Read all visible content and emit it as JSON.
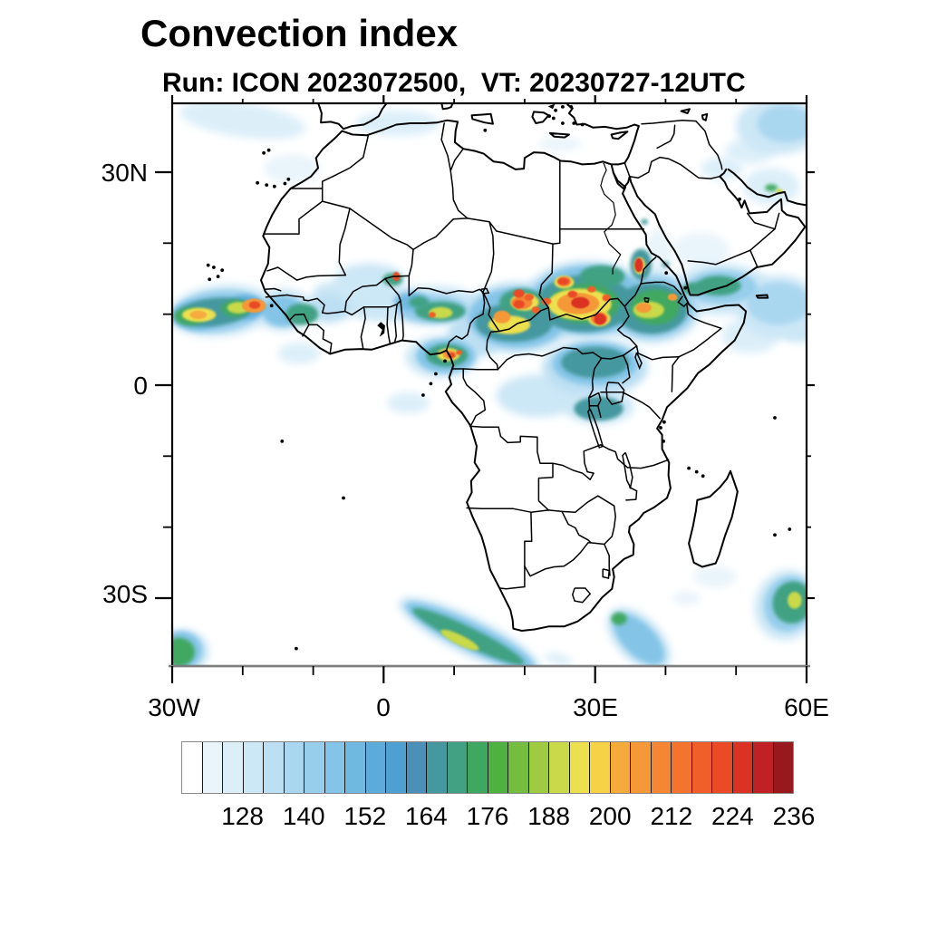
{
  "title": "Convection index",
  "subtitle": "Run: ICON 2023072500,  VT: 20230727-12UTC",
  "map": {
    "x_axis": {
      "major": [
        {
          "label": "30W",
          "lon": -30
        },
        {
          "label": "0",
          "lon": 0
        },
        {
          "label": "30E",
          "lon": 30
        },
        {
          "label": "60E",
          "lon": 60
        }
      ],
      "minor_lons": [
        -20,
        -10,
        10,
        20,
        40,
        50
      ]
    },
    "y_axis": {
      "major": [
        {
          "label": "30N",
          "lat": 30
        },
        {
          "label": "0",
          "lat": 0
        },
        {
          "label": "30S",
          "lat": -30
        }
      ],
      "minor_lats": [
        20,
        10,
        -10,
        -20
      ]
    }
  },
  "colorbar": {
    "min_value": 116,
    "step": 4,
    "tick_labels": [
      "128",
      "140",
      "152",
      "164",
      "176",
      "188",
      "200",
      "212",
      "224",
      "236"
    ],
    "colors": [
      "#FFFFFF",
      "#E9F4FB",
      "#DCEFF9",
      "#CCE7F6",
      "#BCDFF3",
      "#AAD7F0",
      "#97CEEC",
      "#83C4E7",
      "#6FB9E1",
      "#5BACDB",
      "#4E9FD2",
      "#4A90B8",
      "#45989F",
      "#41A183",
      "#3FA860",
      "#4FB13F",
      "#75BD3E",
      "#9FCB43",
      "#C9D94A",
      "#EDE04E",
      "#F6D346",
      "#F5AB3C",
      "#F49838",
      "#F48634",
      "#F3732F",
      "#F05E29",
      "#EA4A25",
      "#DC3224",
      "#C02125",
      "#97181D"
    ]
  },
  "chart_data": {
    "type": "heatmap",
    "title": "Convection index",
    "model_run": "ICON 2023072500",
    "valid_time": "20230727-12UTC",
    "projection": "equirectangular",
    "lon_range": [
      -30,
      60
    ],
    "lat_range": [
      -39.6,
      39.7
    ],
    "levels_start": 116,
    "levels_step": 4,
    "legend_position": "bottom",
    "convection_cells": [
      [
        -23,
        10.5,
        7.5,
        3.6,
        -6,
        128
      ],
      [
        -14.2,
        10.6,
        4.2,
        3,
        0,
        128
      ],
      [
        -8,
        10.8,
        3.5,
        2,
        0,
        132
      ],
      [
        0,
        11.5,
        6,
        2.5,
        0,
        128
      ],
      [
        -2,
        14.8,
        5,
        2.4,
        0,
        128
      ],
      [
        -7,
        13,
        3,
        1.6,
        0,
        128
      ],
      [
        7,
        11.2,
        7,
        2.8,
        0,
        128
      ],
      [
        8.3,
        4,
        5.2,
        3,
        0,
        128
      ],
      [
        13,
        7,
        4,
        3,
        0,
        132
      ],
      [
        19,
        9.5,
        8,
        5,
        0,
        132
      ],
      [
        29,
        12,
        9,
        5.5,
        0,
        132
      ],
      [
        38,
        11,
        7,
        5,
        0,
        132
      ],
      [
        30,
        2.5,
        7.5,
        4,
        0,
        132
      ],
      [
        22,
        -1.5,
        6,
        3,
        0,
        128
      ],
      [
        30.5,
        -3,
        5,
        2.5,
        0,
        128
      ],
      [
        3.5,
        -2.5,
        3,
        1.5,
        0,
        124
      ],
      [
        -12,
        4.5,
        3,
        1.5,
        0,
        124
      ],
      [
        48,
        13.5,
        7,
        3.6,
        0,
        128
      ],
      [
        56,
        11,
        6,
        4.5,
        0,
        128
      ],
      [
        52,
        7,
        4,
        2.5,
        0,
        124
      ],
      [
        59,
        8,
        3,
        2,
        0,
        128
      ],
      [
        45,
        19,
        4,
        2.5,
        0,
        120
      ],
      [
        48,
        30.5,
        3,
        1.6,
        0,
        124
      ],
      [
        52,
        33,
        3.5,
        1.8,
        0,
        124
      ],
      [
        -20,
        37.3,
        9,
        2.4,
        8,
        124
      ],
      [
        2,
        36.9,
        6,
        1.8,
        0,
        124
      ],
      [
        25,
        34,
        3,
        1,
        0,
        120
      ],
      [
        56,
        36.5,
        6,
        4,
        0,
        128
      ],
      [
        55,
        28,
        4,
        2.6,
        0,
        124
      ],
      [
        12.2,
        -35.3,
        11,
        2.6,
        26,
        132
      ],
      [
        36.2,
        -35.8,
        5.5,
        3,
        45,
        132
      ],
      [
        57.2,
        -31,
        4.5,
        5,
        20,
        128
      ],
      [
        -28.5,
        -37.5,
        3.6,
        3,
        0,
        132
      ],
      [
        24.8,
        -38.6,
        2,
        0.8,
        15,
        124
      ],
      [
        -13,
        30.5,
        4,
        2,
        0,
        120
      ],
      [
        39,
        18.5,
        2,
        3.5,
        0,
        120
      ],
      [
        47,
        -27,
        3,
        1.5,
        0,
        120
      ],
      [
        43,
        -30,
        2,
        1,
        0,
        120
      ],
      [
        -23.5,
        10.4,
        6.5,
        2.9,
        -6,
        140
      ],
      [
        -26.5,
        9.8,
        3.5,
        2,
        0,
        148
      ],
      [
        -19.5,
        11,
        2.6,
        1.7,
        0,
        152
      ],
      [
        -14.3,
        10.4,
        3,
        2.2,
        0,
        144
      ],
      [
        7,
        10.7,
        5,
        2,
        0,
        140
      ],
      [
        4,
        11.8,
        2.5,
        1.3,
        0,
        148
      ],
      [
        8.8,
        4.1,
        4.2,
        2.4,
        0,
        144
      ],
      [
        19,
        9.5,
        7,
        4.2,
        0,
        144
      ],
      [
        29,
        12,
        8,
        4.8,
        0,
        144
      ],
      [
        38,
        11,
        6,
        4.3,
        0,
        140
      ],
      [
        30,
        3,
        6,
        3,
        0,
        144
      ],
      [
        48,
        13.8,
        5,
        2.4,
        0,
        140
      ],
      [
        56,
        11.5,
        4.5,
        3,
        0,
        136
      ],
      [
        57,
        36.8,
        4,
        2.6,
        0,
        136
      ],
      [
        12.2,
        -35.3,
        10,
        1.9,
        26,
        144
      ],
      [
        36.2,
        -35.8,
        4.5,
        2.2,
        45,
        144
      ],
      [
        57.5,
        -30.8,
        3.5,
        4,
        20,
        140
      ],
      [
        -28.8,
        -37.3,
        3,
        2.6,
        0,
        144
      ],
      [
        -24,
        10.3,
        5.2,
        2,
        -6,
        164
      ],
      [
        -27.5,
        9.7,
        2.2,
        1.3,
        0,
        172
      ],
      [
        -21,
        10.8,
        2,
        1.2,
        0,
        172
      ],
      [
        -11.6,
        10,
        2.3,
        1.5,
        0,
        168
      ],
      [
        1.3,
        14.9,
        1.4,
        0.9,
        0,
        168
      ],
      [
        8,
        10.4,
        3.6,
        1.4,
        0,
        168
      ],
      [
        5,
        11.7,
        1.4,
        0.8,
        0,
        168
      ],
      [
        9,
        4.2,
        3,
        1.6,
        0,
        168
      ],
      [
        18.5,
        8.8,
        5.5,
        2.7,
        0,
        164
      ],
      [
        19.6,
        11.6,
        3.2,
        2,
        0,
        168
      ],
      [
        28.5,
        11.5,
        7,
        4,
        0,
        164
      ],
      [
        28.5,
        11.5,
        5,
        2.8,
        0,
        172
      ],
      [
        31,
        15.3,
        3.2,
        1.6,
        0,
        168
      ],
      [
        38,
        10.8,
        5.2,
        3.6,
        0,
        164
      ],
      [
        38.5,
        11,
        3.5,
        2.5,
        0,
        172
      ],
      [
        30,
        3.2,
        4.8,
        2.2,
        0,
        164
      ],
      [
        36.5,
        17,
        1.5,
        2.2,
        0,
        164
      ],
      [
        47.5,
        14,
        3.2,
        1.4,
        0,
        168
      ],
      [
        44,
        13.6,
        1.6,
        0.9,
        0,
        168
      ],
      [
        30.5,
        -3.3,
        3.5,
        1.7,
        0,
        164
      ],
      [
        12,
        -35.4,
        8.8,
        1.3,
        26,
        168
      ],
      [
        58,
        -30.6,
        2.8,
        3,
        20,
        168
      ],
      [
        -29,
        -37.6,
        2.2,
        2,
        0,
        172
      ],
      [
        33.4,
        -32.9,
        1.1,
        0.9,
        0,
        172
      ],
      [
        55,
        27.8,
        0.9,
        0.5,
        0,
        172
      ],
      [
        37,
        23,
        0.5,
        0.4,
        0,
        164
      ],
      [
        40,
        17,
        0.5,
        0.4,
        0,
        164
      ],
      [
        -26.2,
        9.9,
        2.4,
        1,
        0,
        192
      ],
      [
        -20.6,
        10.9,
        1.6,
        0.8,
        0,
        188
      ],
      [
        17.8,
        8.5,
        3,
        1.3,
        0,
        192
      ],
      [
        20,
        11.7,
        2,
        1.2,
        0,
        192
      ],
      [
        27.8,
        11.4,
        4.5,
        2.2,
        0,
        192
      ],
      [
        25.6,
        14.5,
        1.4,
        0.9,
        0,
        192
      ],
      [
        30.6,
        9.4,
        1.6,
        1.1,
        0,
        192
      ],
      [
        37.6,
        10.6,
        2.2,
        1.2,
        0,
        188
      ],
      [
        8.1,
        10.2,
        1.7,
        0.8,
        0,
        188
      ],
      [
        9.2,
        4.3,
        1.6,
        0.9,
        0,
        192
      ],
      [
        10.8,
        -35.9,
        3,
        0.7,
        26,
        188
      ],
      [
        58.3,
        -30.3,
        1,
        1.2,
        0,
        188
      ],
      [
        36.3,
        16.8,
        0.8,
        1.2,
        0,
        192
      ],
      [
        56.2,
        27.3,
        0.5,
        0.35,
        0,
        188
      ],
      [
        -18.4,
        11.2,
        1.7,
        1,
        0,
        204
      ],
      [
        27.6,
        11.5,
        3,
        1.5,
        0,
        204
      ],
      [
        19.6,
        11.6,
        1.5,
        0.9,
        0,
        208
      ],
      [
        16.8,
        9.6,
        1.2,
        0.9,
        0,
        204
      ],
      [
        30.6,
        9.4,
        1.2,
        0.9,
        0,
        208
      ],
      [
        25.6,
        14.6,
        1,
        0.7,
        0,
        208
      ],
      [
        36.9,
        10.9,
        1.1,
        0.7,
        0,
        204
      ],
      [
        41,
        12.4,
        0.7,
        0.5,
        0,
        204
      ],
      [
        9.4,
        4.3,
        1,
        0.6,
        0,
        204
      ],
      [
        -26.3,
        9.9,
        1.2,
        0.6,
        0,
        200
      ],
      [
        -18.3,
        11.3,
        0.8,
        0.55,
        0,
        220
      ],
      [
        1.8,
        15.3,
        0.5,
        0.65,
        0,
        220
      ],
      [
        19.2,
        11.4,
        0.8,
        0.6,
        0,
        220
      ],
      [
        19.2,
        12.9,
        0.8,
        0.6,
        0,
        220
      ],
      [
        20.6,
        12.4,
        0.7,
        0.5,
        0,
        216
      ],
      [
        21.6,
        10.6,
        0.6,
        0.5,
        0,
        216
      ],
      [
        23.1,
        11.8,
        0.7,
        0.5,
        0,
        216
      ],
      [
        27.9,
        11.6,
        1.3,
        0.8,
        0,
        224
      ],
      [
        26.8,
        12.8,
        0.7,
        0.5,
        0,
        220
      ],
      [
        30.7,
        9.3,
        0.85,
        0.8,
        0,
        224
      ],
      [
        31.6,
        12.3,
        0.6,
        0.5,
        0,
        216
      ],
      [
        29.5,
        13.5,
        0.6,
        0.45,
        0,
        216
      ],
      [
        25.5,
        14.6,
        0.8,
        0.5,
        0,
        220
      ],
      [
        36.2,
        16.9,
        0.6,
        1,
        0,
        224
      ],
      [
        9.6,
        4.2,
        0.55,
        0.4,
        0,
        220
      ],
      [
        10.7,
        4.6,
        0.45,
        0.35,
        0,
        216
      ],
      [
        6.9,
        9.9,
        0.5,
        0.4,
        0,
        216
      ]
    ]
  }
}
